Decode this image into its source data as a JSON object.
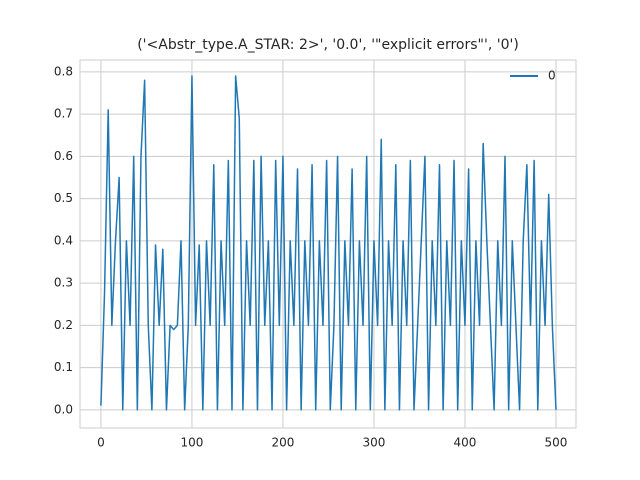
{
  "chart_data": {
    "type": "line",
    "title": "('<Abstr_type.A_STAR: 2>', '0.0', '\"explicit errors\"', '0')",
    "x": [
      0,
      4,
      8,
      12,
      16,
      20,
      24,
      28,
      32,
      36,
      40,
      44,
      48,
      52,
      56,
      60,
      64,
      68,
      72,
      76,
      80,
      84,
      88,
      92,
      96,
      100,
      104,
      108,
      112,
      116,
      120,
      124,
      128,
      132,
      136,
      140,
      144,
      148,
      152,
      156,
      160,
      164,
      168,
      172,
      176,
      180,
      184,
      188,
      192,
      196,
      200,
      204,
      208,
      212,
      216,
      220,
      224,
      228,
      232,
      236,
      240,
      244,
      248,
      252,
      256,
      260,
      264,
      268,
      272,
      276,
      280,
      284,
      288,
      292,
      296,
      300,
      304,
      308,
      312,
      316,
      320,
      324,
      328,
      332,
      336,
      340,
      344,
      348,
      352,
      356,
      360,
      364,
      368,
      372,
      376,
      380,
      384,
      388,
      392,
      396,
      400,
      404,
      408,
      412,
      416,
      420,
      424,
      428,
      432,
      436,
      440,
      444,
      448,
      452,
      456,
      460,
      464,
      468,
      472,
      476,
      480,
      484,
      488,
      492,
      496,
      500
    ],
    "series": [
      {
        "name": "0",
        "color": "#1f77b4",
        "values": [
          0.01,
          0.28,
          0.71,
          0.2,
          0.4,
          0.55,
          0.0,
          0.4,
          0.2,
          0.6,
          0.0,
          0.6,
          0.78,
          0.2,
          0.0,
          0.39,
          0.2,
          0.38,
          0.0,
          0.2,
          0.19,
          0.2,
          0.4,
          0.0,
          0.2,
          0.79,
          0.2,
          0.39,
          0.0,
          0.4,
          0.2,
          0.58,
          0.0,
          0.4,
          0.2,
          0.59,
          0.0,
          0.79,
          0.69,
          0.0,
          0.4,
          0.2,
          0.59,
          0.0,
          0.6,
          0.2,
          0.4,
          0.0,
          0.59,
          0.2,
          0.6,
          0.0,
          0.4,
          0.2,
          0.57,
          0.0,
          0.4,
          0.2,
          0.58,
          0.0,
          0.4,
          0.2,
          0.59,
          0.0,
          0.2,
          0.6,
          0.0,
          0.4,
          0.2,
          0.57,
          0.0,
          0.4,
          0.2,
          0.6,
          0.0,
          0.4,
          0.2,
          0.64,
          0.0,
          0.4,
          0.2,
          0.58,
          0.0,
          0.4,
          0.2,
          0.59,
          0.0,
          0.2,
          0.4,
          0.6,
          0.0,
          0.4,
          0.2,
          0.58,
          0.0,
          0.4,
          0.2,
          0.59,
          0.0,
          0.4,
          0.2,
          0.57,
          0.0,
          0.4,
          0.2,
          0.63,
          0.4,
          0.2,
          0.0,
          0.4,
          0.2,
          0.6,
          0.0,
          0.4,
          0.2,
          0.0,
          0.4,
          0.58,
          0.2,
          0.59,
          0.0,
          0.4,
          0.2,
          0.51,
          0.2,
          0.0
        ]
      }
    ],
    "xlim": [
      -23,
      522
    ],
    "xticks": [
      0,
      100,
      200,
      300,
      400,
      500
    ],
    "ylim": [
      -0.043,
      0.828
    ],
    "yticks": [
      {
        "value": 0,
        "label": "0.0"
      },
      0.1,
      0.2,
      0.3,
      0.4,
      0.5,
      0.6,
      0.7,
      0.8
    ],
    "grid": true,
    "legend": "upper right"
  }
}
